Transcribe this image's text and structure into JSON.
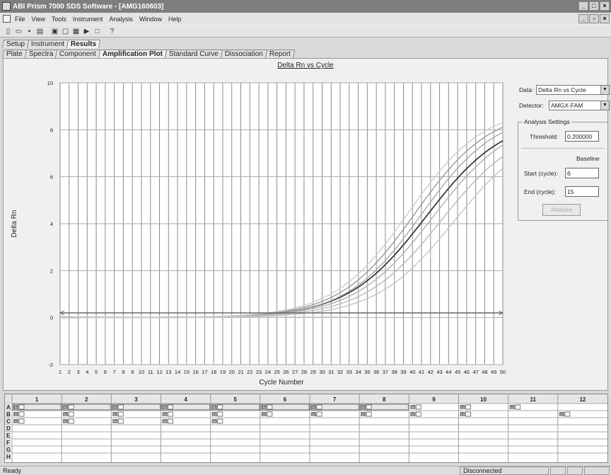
{
  "window": {
    "title": "ABI Prism 7000 SDS Software - [AMG160603]"
  },
  "menu": [
    "File",
    "View",
    "Tools",
    "Instrument",
    "Analysis",
    "Window",
    "Help"
  ],
  "toolbar_icons": [
    "new-icon",
    "open-icon",
    "save-icon",
    "print-icon",
    "preview-icon",
    "tool-icon",
    "tool2-icon",
    "play-icon",
    "stop-icon",
    "help-icon"
  ],
  "tabs_top": [
    {
      "label": "Setup",
      "active": false
    },
    {
      "label": "Instrument",
      "active": false
    },
    {
      "label": "Results",
      "active": true
    }
  ],
  "tabs_results": [
    {
      "label": "Plate",
      "active": false
    },
    {
      "label": "Spectra",
      "active": false
    },
    {
      "label": "Component",
      "active": false
    },
    {
      "label": "Amplification Plot",
      "active": true
    },
    {
      "label": "Standard Curve",
      "active": false
    },
    {
      "label": "Dissociation",
      "active": false
    },
    {
      "label": "Report",
      "active": false
    }
  ],
  "panel": {
    "data_label": "Data:",
    "data_value": "Delta Rn vs Cycle",
    "detector_label": "Detector:",
    "detector_value": "AMGX-FAM",
    "group_title": "Analysis Settings",
    "threshold_label": "Threshold:",
    "threshold_value": "0.200000",
    "baseline_label": "Baseline",
    "start_label": "Start (cycle):",
    "start_value": "6",
    "end_label": "End (cycle):",
    "end_value": "15",
    "analyze_label": "Analyze"
  },
  "chart_data": {
    "type": "line",
    "title": "Delta Rn vs Cycle",
    "xlabel": "Cycle Number",
    "ylabel": "Delta Rn",
    "xlim": [
      1,
      50
    ],
    "ylim": [
      -2,
      10
    ],
    "yticks": [
      -2,
      0,
      2,
      4,
      6,
      8,
      10
    ],
    "xticks": [
      1,
      2,
      3,
      4,
      5,
      6,
      7,
      8,
      9,
      10,
      11,
      12,
      13,
      14,
      15,
      16,
      17,
      18,
      19,
      20,
      21,
      22,
      23,
      24,
      25,
      26,
      27,
      28,
      29,
      30,
      31,
      32,
      33,
      34,
      35,
      36,
      37,
      38,
      39,
      40,
      41,
      42,
      43,
      44,
      45,
      46,
      47,
      48,
      49,
      50
    ],
    "grid": true,
    "threshold": 0.2,
    "series": [
      {
        "color": "#3a3a3a",
        "midpoint": 41.5,
        "plateau": 8.6,
        "slope": 0.23
      },
      {
        "color": "#9a9a9a",
        "midpoint": 40.3,
        "plateau": 8.9,
        "slope": 0.24
      },
      {
        "color": "#a8a8a8",
        "midpoint": 41.0,
        "plateau": 8.8,
        "slope": 0.24
      },
      {
        "color": "#b0b0b0",
        "midpoint": 42.3,
        "plateau": 8.6,
        "slope": 0.23
      },
      {
        "color": "#b8b8b8",
        "midpoint": 43.2,
        "plateau": 8.3,
        "slope": 0.23
      },
      {
        "color": "#c4c4c4",
        "midpoint": 44.6,
        "plateau": 8.2,
        "slope": 0.23
      },
      {
        "color": "#cccccc",
        "midpoint": 39.6,
        "plateau": 9.0,
        "slope": 0.24
      }
    ]
  },
  "plate": {
    "columns": [
      "1",
      "2",
      "3",
      "4",
      "5",
      "6",
      "7",
      "8",
      "9",
      "10",
      "11",
      "12"
    ],
    "rows": [
      "A",
      "B",
      "C",
      "D",
      "E",
      "F",
      "G",
      "H"
    ],
    "wells": {
      "A": [
        "S",
        "S",
        "S",
        "S",
        "S",
        "S",
        "S",
        "S",
        "N",
        "U",
        "U",
        ""
      ],
      "B": [
        "U",
        "U",
        "U",
        "U",
        "U",
        "U",
        "U",
        "U",
        "U",
        "U",
        "",
        "U"
      ],
      "C": [
        "U",
        "U",
        "N",
        "N",
        "N",
        "",
        "",
        "",
        "",
        "",
        "",
        ""
      ]
    },
    "highlighted_row": "A"
  },
  "status": {
    "left": "Ready",
    "connection": "Disconnected"
  }
}
